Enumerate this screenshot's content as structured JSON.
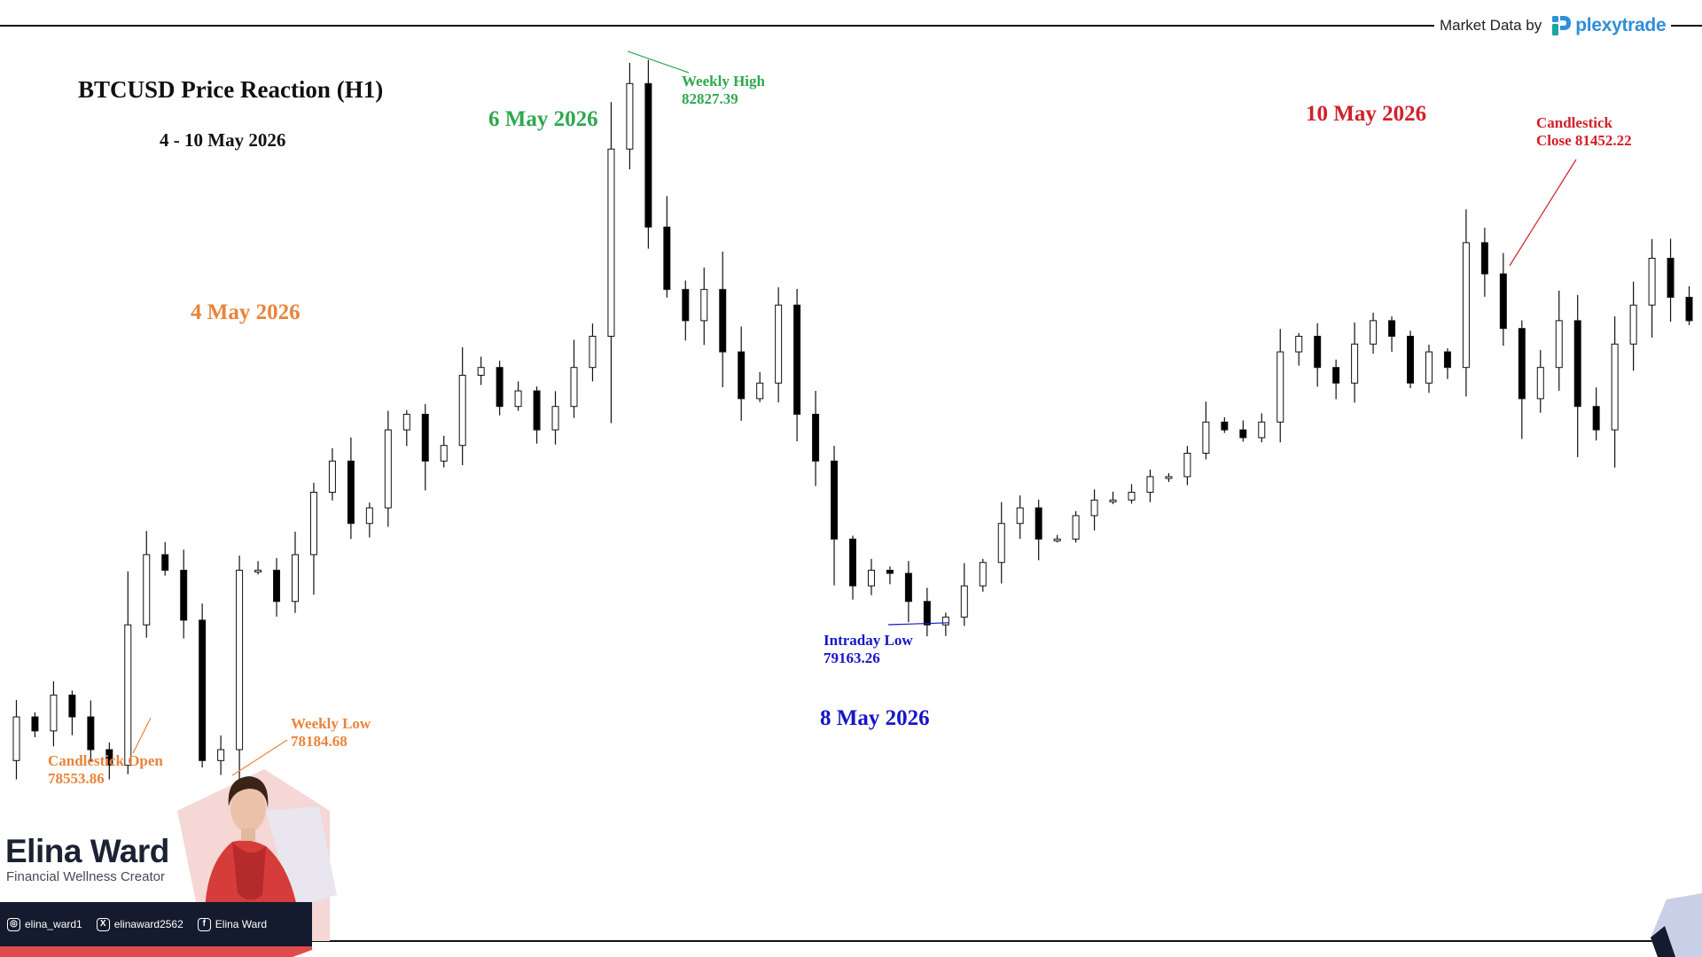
{
  "header": {
    "provider_label": "Market Data by",
    "provider_brand": "plexytrade"
  },
  "chart_data": {
    "type": "candlestick",
    "title": "BTCUSD Price Reaction (H1)",
    "subtitle": "4 - 10 May 2026",
    "timeframe": "H1",
    "day_labels": [
      {
        "text": "4 May 2026",
        "color": "#e8843c"
      },
      {
        "text": "6 May 2026",
        "color": "#2fa84f"
      },
      {
        "text": "8 May 2026",
        "color": "#1616c8"
      },
      {
        "text": "10 May 2026",
        "color": "#d1202a"
      }
    ],
    "annotations": [
      {
        "line1": "Candlestick Open",
        "line2": "78553.86",
        "value": 78553.86,
        "color": "#e8843c"
      },
      {
        "line1": "Weekly Low",
        "line2": "78184.68",
        "value": 78184.68,
        "color": "#e8843c"
      },
      {
        "line1": "Weekly High",
        "line2": "82827.39",
        "value": 82827.39,
        "color": "#2fa84f"
      },
      {
        "line1": "Intraday Low",
        "line2": "79163.26",
        "value": 79163.26,
        "color": "#1616c8"
      },
      {
        "line1": "Candlestick",
        "line2": "Close 81452.22",
        "value": 81452.22,
        "color": "#d1202a"
      }
    ],
    "ylim": [
      78100,
      82900
    ],
    "grid": false,
    "legend": "none",
    "candle_up_color": "#ffffff",
    "candle_down_color": "#000000",
    "waypoints": [
      78280,
      78560,
      78470,
      78700,
      78560,
      78350,
      78250,
      79150,
      79600,
      79500,
      79180,
      78280,
      78350,
      79500,
      79500,
      79300,
      79600,
      80000,
      80200,
      79800,
      79900,
      80400,
      80500,
      80200,
      80300,
      80750,
      80800,
      80550,
      80650,
      80400,
      80550,
      80800,
      81000,
      82200,
      82620,
      81700,
      81300,
      81100,
      81300,
      80900,
      80600,
      80700,
      81200,
      80500,
      80200,
      79700,
      79400,
      79500,
      79480,
      79300,
      79150,
      79200,
      79400,
      79550,
      79800,
      79900,
      79700,
      79700,
      79850,
      79950,
      79950,
      80000,
      80100,
      80100,
      80250,
      80450,
      80400,
      80350,
      80450,
      80900,
      81000,
      80800,
      80700,
      80950,
      81100,
      81000,
      80700,
      80900,
      80800,
      81600,
      81400,
      81050,
      80600,
      80800,
      81100,
      80550,
      80400,
      80950,
      81200,
      81500,
      81250,
      81100
    ]
  },
  "creator": {
    "name": "Elina Ward",
    "title": "Financial Wellness Creator",
    "socials": [
      {
        "icon": "instagram-icon",
        "glyph": "◎",
        "handle": "elina_ward1"
      },
      {
        "icon": "x-icon",
        "glyph": "X",
        "handle": "elinaward2562"
      },
      {
        "icon": "facebook-icon",
        "glyph": "f",
        "handle": "Elina Ward"
      }
    ]
  }
}
